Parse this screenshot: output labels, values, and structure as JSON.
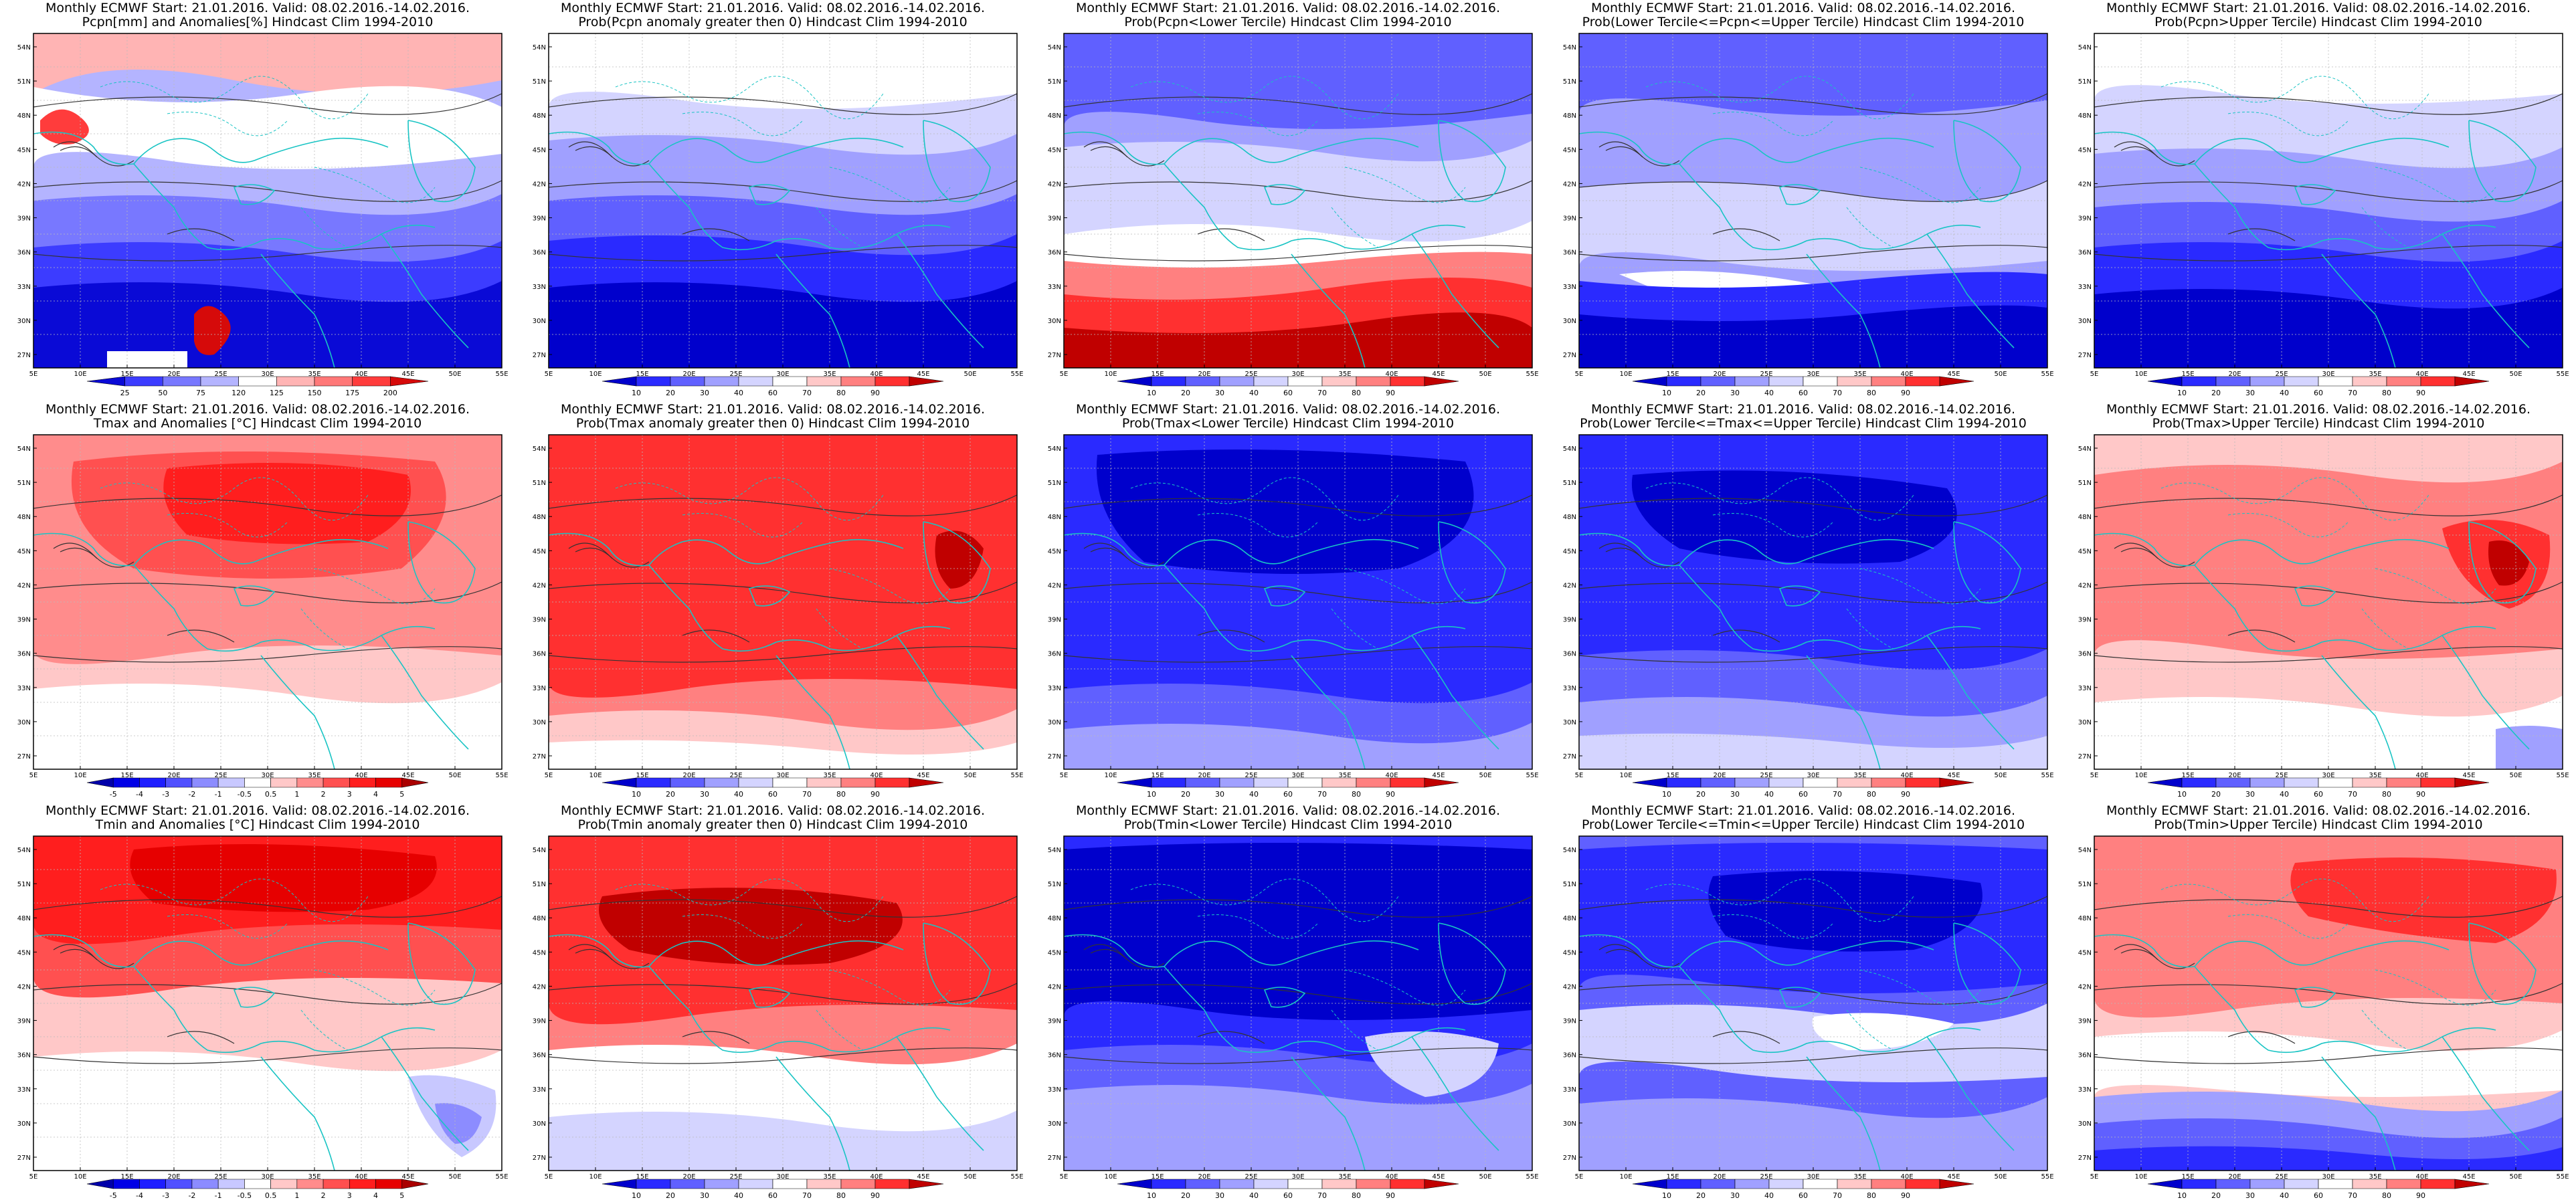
{
  "title_prefix": "Monthly ECMWF Start: 21.01.2016. Valid: 08.02.2016.-14.02.2016.",
  "lon_labels": [
    "5E",
    "10E",
    "15E",
    "20E",
    "25E",
    "30E",
    "35E",
    "40E",
    "45E",
    "50E",
    "55E"
  ],
  "lat_labels": [
    "54N",
    "51N",
    "48N",
    "45N",
    "42N",
    "39N",
    "36N",
    "33N",
    "30N",
    "27N"
  ],
  "colorbars": {
    "pcpn_anom": {
      "labels": [
        "25",
        "50",
        "75",
        "120",
        "125",
        "150",
        "175",
        "200"
      ],
      "colors": [
        "#0a0ad6",
        "#3c3cff",
        "#7878ff",
        "#b4b4ff",
        "#ffffff",
        "#ffb4b4",
        "#ff7878",
        "#ff3c3c",
        "#d60a0a"
      ]
    },
    "temp_anom": {
      "labels": [
        "-5",
        "-4",
        "-3",
        "-2",
        "-1",
        "-0.5",
        "0.5",
        "1",
        "2",
        "3",
        "4",
        "5"
      ],
      "colors": [
        "#0000aa",
        "#0000e6",
        "#1e1eff",
        "#5050ff",
        "#8c8cff",
        "#c8c8ff",
        "#ffffff",
        "#ffc8c8",
        "#ff8c8c",
        "#ff5050",
        "#ff1e1e",
        "#e60000",
        "#aa0000"
      ]
    },
    "prob": {
      "labels": [
        "10",
        "20",
        "30",
        "40",
        "60",
        "70",
        "80",
        "90"
      ],
      "colors": [
        "#0000cc",
        "#2a2aff",
        "#6060ff",
        "#a0a0ff",
        "#d4d4ff",
        "#ffffff",
        "#ffc8c8",
        "#ff8080",
        "#ff3030",
        "#c00000"
      ]
    }
  },
  "panels": [
    {
      "line2": "Pcpn[mm] and Anomalies[%] Hindcast Clim 1994-2010",
      "bar": "pcpn_anom",
      "pattern": "pcpn_anom"
    },
    {
      "line2": "Prob(Pcpn anomaly greater then 0) Hindcast Clim 1994-2010",
      "bar": "prob",
      "pattern": "pcpn_prob_pos"
    },
    {
      "line2": "Prob(Pcpn<Lower Tercile) Hindcast Clim 1994-2010",
      "bar": "prob",
      "pattern": "pcpn_lower"
    },
    {
      "line2": "Prob(Lower Tercile<=Pcpn<=Upper Tercile) Hindcast Clim 1994-2010",
      "bar": "prob",
      "pattern": "pcpn_mid"
    },
    {
      "line2": "Prob(Pcpn>Upper Tercile) Hindcast Clim 1994-2010",
      "bar": "prob",
      "pattern": "pcpn_upper"
    },
    {
      "line2": "Tmax and Anomalies [°C] Hindcast Clim 1994-2010",
      "bar": "temp_anom",
      "pattern": "tmax_anom"
    },
    {
      "line2": "Prob(Tmax anomaly greater then 0) Hindcast Clim 1994-2010",
      "bar": "prob",
      "pattern": "tmax_prob_pos"
    },
    {
      "line2": "Prob(Tmax<Lower Tercile) Hindcast Clim 1994-2010",
      "bar": "prob",
      "pattern": "tmax_lower"
    },
    {
      "line2": "Prob(Lower Tercile<=Tmax<=Upper Tercile) Hindcast Clim 1994-2010",
      "bar": "prob",
      "pattern": "tmax_mid"
    },
    {
      "line2": "Prob(Tmax>Upper Tercile) Hindcast Clim 1994-2010",
      "bar": "prob",
      "pattern": "tmax_upper"
    },
    {
      "line2": "Tmin and Anomalies [°C] Hindcast Clim 1994-2010",
      "bar": "temp_anom",
      "pattern": "tmin_anom"
    },
    {
      "line2": "Prob(Tmin anomaly greater then 0) Hindcast Clim 1994-2010",
      "bar": "prob",
      "pattern": "tmin_prob_pos"
    },
    {
      "line2": "Prob(Tmin<Lower Tercile) Hindcast Clim 1994-2010",
      "bar": "prob",
      "pattern": "tmin_lower"
    },
    {
      "line2": "Prob(Lower Tercile<=Tmin<=Upper Tercile) Hindcast Clim 1994-2010",
      "bar": "prob",
      "pattern": "tmin_mid"
    },
    {
      "line2": "Prob(Tmin>Upper Tercile) Hindcast Clim 1994-2010",
      "bar": "prob",
      "pattern": "tmin_upper"
    }
  ]
}
